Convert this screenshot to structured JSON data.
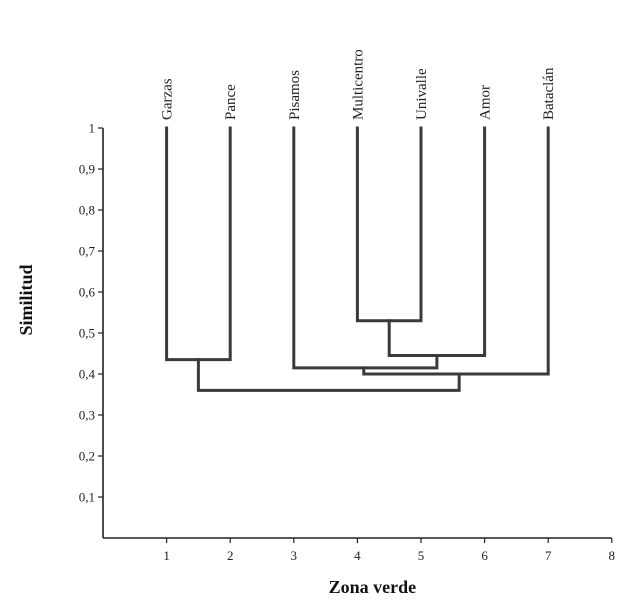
{
  "chart_data": {
    "type": "dendrogram",
    "xlabel": "Zona verde",
    "ylabel": "Similitud",
    "xlim": [
      0,
      8
    ],
    "ylim": [
      0,
      1
    ],
    "x_ticks": [
      "1",
      "2",
      "3",
      "4",
      "5",
      "6",
      "7",
      "8"
    ],
    "y_ticks": [
      "0,1",
      "0,2",
      "0,3",
      "0,4",
      "0,5",
      "0,6",
      "0,7",
      "0,8",
      "0,9",
      "1"
    ],
    "leaves": [
      {
        "label": "Garzas",
        "x": 1
      },
      {
        "label": "Pance",
        "x": 2
      },
      {
        "label": "Pisamos",
        "x": 3
      },
      {
        "label": "Multicentro",
        "x": 4
      },
      {
        "label": "Univalle",
        "x": 5
      },
      {
        "label": "Amor",
        "x": 6
      },
      {
        "label": "Bataclán",
        "x": 7
      }
    ],
    "merges": [
      {
        "left_x": 4,
        "right_x": 5,
        "similarity": 0.53,
        "x": 4.5
      },
      {
        "left_x": 4.5,
        "right_x": 6,
        "similarity": 0.445,
        "x": 5.25
      },
      {
        "left_x": 1,
        "right_x": 2,
        "similarity": 0.435,
        "x": 1.5
      },
      {
        "left_x": 3,
        "right_x": 5.25,
        "similarity": 0.415,
        "x": 4.1
      },
      {
        "left_x": 4.1,
        "right_x": 7,
        "similarity": 0.4,
        "x": 5.6
      },
      {
        "left_x": 1.5,
        "right_x": 5.6,
        "similarity": 0.36,
        "x": 3.5
      }
    ],
    "legend": "none",
    "grid": false
  }
}
